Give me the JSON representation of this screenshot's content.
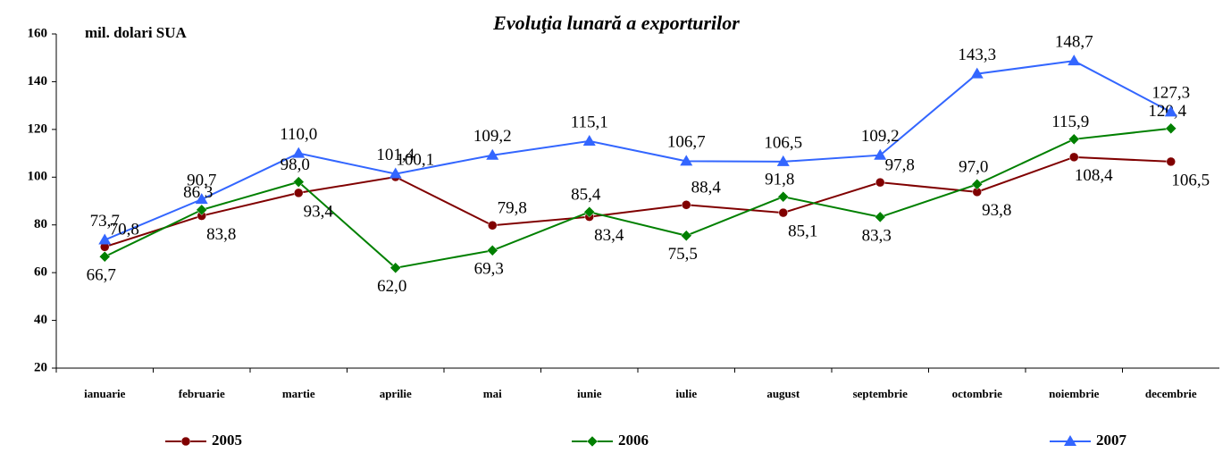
{
  "chart_data": {
    "type": "line",
    "title": "Evoluţia lunară a exporturilor",
    "y_label": "mil. dolari SUA",
    "categories": [
      "ianuarie",
      "februarie",
      "martie",
      "aprilie",
      "mai",
      "iunie",
      "iulie",
      "august",
      "septembrie",
      "octombrie",
      "noiembrie",
      "decembrie"
    ],
    "series": [
      {
        "name": "2005",
        "color": "#800000",
        "marker": "circle",
        "values": [
          70.8,
          83.8,
          93.4,
          100.1,
          79.8,
          83.4,
          88.4,
          85.1,
          97.8,
          93.8,
          108.4,
          106.5
        ],
        "value_labels": [
          "70,8",
          "83,8",
          "93,4",
          "100,1",
          "79,8",
          "83,4",
          "88,4",
          "85,1",
          "97,8",
          "93,8",
          "108,4",
          "106,5"
        ]
      },
      {
        "name": "2006",
        "color": "#008000",
        "marker": "diamond",
        "values": [
          66.7,
          86.3,
          98.0,
          62.0,
          69.3,
          85.4,
          75.5,
          91.8,
          83.3,
          97.0,
          115.9,
          120.4
        ],
        "value_labels": [
          "66,7",
          "86,3",
          "98,0",
          "62,0",
          "69,3",
          "85,4",
          "75,5",
          "91,8",
          "83,3",
          "97,0",
          "115,9",
          "120,4"
        ]
      },
      {
        "name": "2007",
        "color": "#3366ff",
        "marker": "triangle",
        "values": [
          73.7,
          90.7,
          110.0,
          101.4,
          109.2,
          115.1,
          106.7,
          106.5,
          109.2,
          143.3,
          148.7,
          127.3
        ],
        "value_labels": [
          "73,7",
          "90,7",
          "110,0",
          "101,4",
          "109,2",
          "115,1",
          "106,7",
          "106,5",
          "109,2",
          "143,3",
          "148,7",
          "127,3"
        ]
      }
    ],
    "ylim": [
      20,
      160
    ],
    "yticks": [
      20,
      40,
      60,
      80,
      100,
      120,
      140,
      160
    ],
    "legend": "bottom"
  }
}
